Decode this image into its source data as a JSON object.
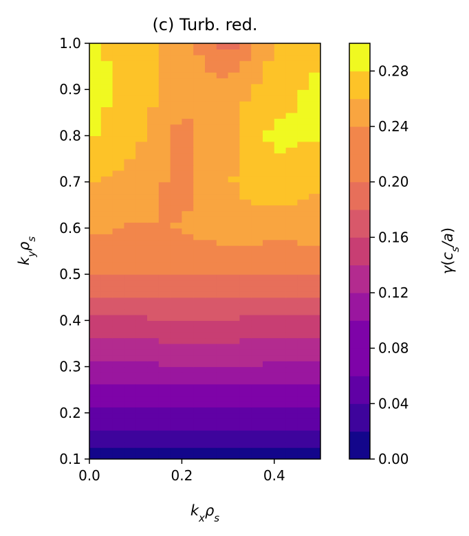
{
  "chart_data": {
    "type": "contour",
    "title": "(c) Turb. red.",
    "xlabel": "k_xρ_s",
    "ylabel": "k_yρ_s",
    "colorbar_label": "γ(c_s/a)",
    "colormap": "plasma",
    "xlim": [
      0.0,
      0.5
    ],
    "ylim": [
      0.1,
      1.0
    ],
    "clim": [
      0.0,
      0.3
    ],
    "level_step": 0.02,
    "x_ticks": [
      "0.0",
      "0.2",
      "0.4"
    ],
    "x_tick_values": [
      0.0,
      0.2,
      0.4
    ],
    "y_ticks": [
      "0.1",
      "0.2",
      "0.3",
      "0.4",
      "0.5",
      "0.6",
      "0.7",
      "0.8",
      "0.9",
      "1.0"
    ],
    "y_tick_values": [
      0.1,
      0.2,
      0.3,
      0.4,
      0.5,
      0.6,
      0.7,
      0.8,
      0.9,
      1.0
    ],
    "colorbar_ticks": [
      "0.00",
      "0.04",
      "0.08",
      "0.12",
      "0.16",
      "0.20",
      "0.24",
      "0.28"
    ],
    "colorbar_tick_values": [
      0.0,
      0.04,
      0.08,
      0.12,
      0.16,
      0.2,
      0.24,
      0.28
    ],
    "level_colors": [
      "#13068b",
      "#3e049c",
      "#6001a5",
      "#7e03a8",
      "#9a169f",
      "#b32b8f",
      "#c83e73",
      "#d8586a",
      "#e76f5a",
      "#f2864b",
      "#f9a540",
      "#fdc328",
      "#f0f921"
    ],
    "x": [
      0.0,
      0.1,
      0.2,
      0.3,
      0.4,
      0.5
    ],
    "y": [
      0.1,
      0.2,
      0.3,
      0.4,
      0.5,
      0.6,
      0.7,
      0.8,
      0.9,
      1.0
    ],
    "z": [
      [
        0.01,
        0.01,
        0.01,
        0.01,
        0.01,
        0.01
      ],
      [
        0.055,
        0.055,
        0.054,
        0.054,
        0.055,
        0.055
      ],
      [
        0.095,
        0.097,
        0.098,
        0.099,
        0.097,
        0.096
      ],
      [
        0.135,
        0.137,
        0.138,
        0.138,
        0.135,
        0.137
      ],
      [
        0.182,
        0.182,
        0.182,
        0.178,
        0.181,
        0.18
      ],
      [
        0.205,
        0.198,
        0.201,
        0.212,
        0.208,
        0.21
      ],
      [
        0.222,
        0.211,
        0.193,
        0.218,
        0.235,
        0.221
      ],
      [
        0.243,
        0.225,
        0.192,
        0.215,
        0.245,
        0.241
      ],
      [
        0.246,
        0.235,
        0.208,
        0.209,
        0.232,
        0.245
      ],
      [
        0.244,
        0.23,
        0.214,
        0.17,
        0.22,
        0.236
      ]
    ]
  }
}
